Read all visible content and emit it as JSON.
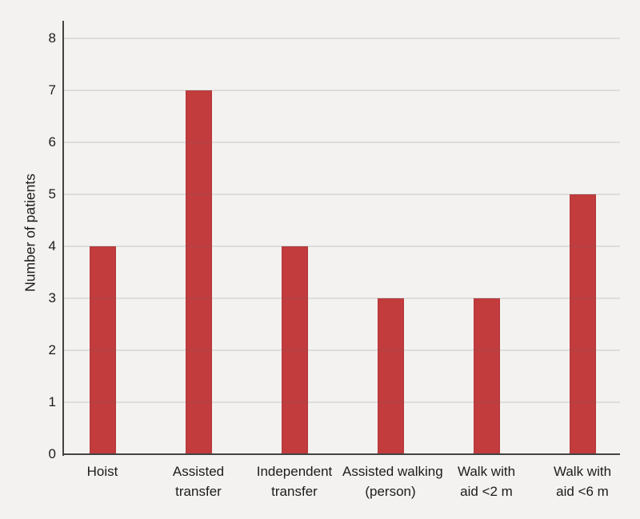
{
  "chart_data": {
    "type": "bar",
    "title": "",
    "xlabel": "",
    "ylabel": "Number of patients",
    "categories": [
      "Hoist",
      "Assisted transfer",
      "Independent transfer",
      "Assisted walking (person)",
      "Walk with aid <2 m",
      "Walk with aid <6 m"
    ],
    "category_lines": [
      [
        "Hoist"
      ],
      [
        "Assisted",
        "transfer"
      ],
      [
        "Independent",
        "transfer"
      ],
      [
        "Assisted walking",
        "(person)"
      ],
      [
        "Walk with",
        "aid <2 m"
      ],
      [
        "Walk with",
        "aid <6 m"
      ]
    ],
    "values": [
      4,
      7,
      4,
      3,
      3,
      5
    ],
    "ylim": [
      0,
      8
    ],
    "yticks": [
      0,
      1,
      2,
      3,
      4,
      5,
      6,
      7,
      8
    ],
    "grid": true,
    "legend": "none",
    "bar_color": "#c23b3d",
    "background_color": "#f3f2f0",
    "axis_color": "#434343"
  }
}
